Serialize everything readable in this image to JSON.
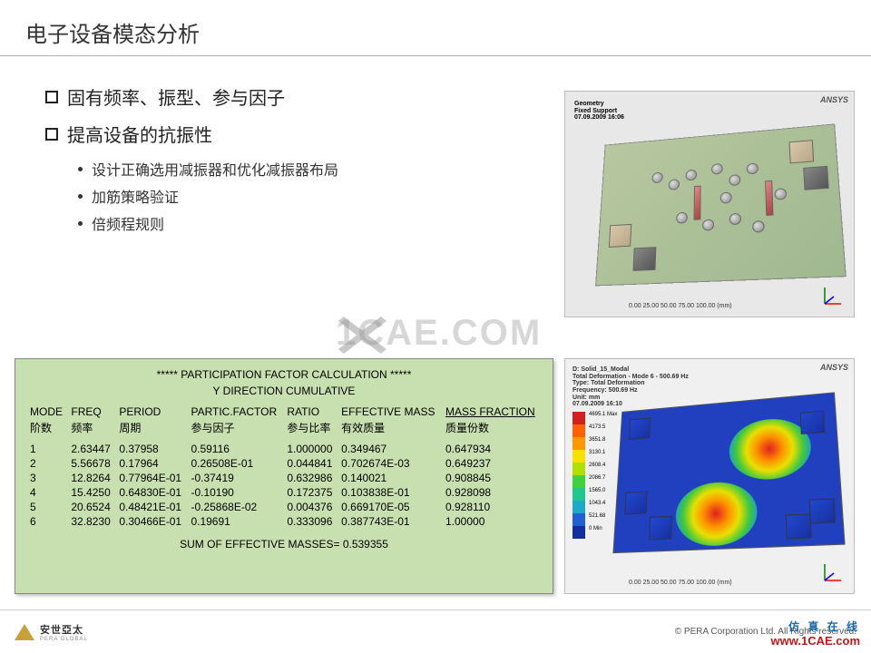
{
  "title": "电子设备模态分析",
  "bullets": {
    "b1": "固有频率、振型、参与因子",
    "b2": "提高设备的抗振性",
    "s1": "设计正确选用减振器和优化减振器布局",
    "s2": "加筋策略验证",
    "s3": "倍频程规则"
  },
  "figure_top": {
    "panel": "Geometry\nFixed Support\n07.09.2009 16:06",
    "logo": "ANSYS",
    "scale": "0.00    25.00    50.00    75.00    100.00 (mm)"
  },
  "figure_bot": {
    "panel": "D: Solid_15_Modal\nTotal Deformation - Mode 6 - 500.69 Hz\nType: Total Deformation\nFrequency: 500.69 Hz\nUnit: mm\n07.09.2009 16:10",
    "logo": "ANSYS",
    "legend_vals": [
      "4695.1 Max",
      "4173.5",
      "3651.8",
      "3130.1",
      "2608.4",
      "2086.7",
      "1565.0",
      "1043.4",
      "521.68",
      "0 Min"
    ],
    "legend_colors": [
      "#d02020",
      "#ff6000",
      "#ff9800",
      "#f8e000",
      "#b0e000",
      "#40d040",
      "#20c890",
      "#20a8c8",
      "#2060d0",
      "#1030a0"
    ],
    "scale": "0.00    25.00    50.00    75.00    100.00 (mm)"
  },
  "table": {
    "title": "*****  PARTICIPATION  FACTOR  CALCULATION  *****",
    "subtitle": "Y  DIRECTION CUMULATIVE",
    "headers_en": [
      "MODE",
      "FREQ",
      "PERIOD",
      "PARTIC.FACTOR",
      "RATIO",
      "EFFECTIVE MASS",
      "MASS FRACTION"
    ],
    "headers_cn": [
      "阶数",
      "频率",
      "周期",
      "参与因子",
      "参与比率",
      "有效质量",
      "质量份数"
    ],
    "rows": [
      [
        "1",
        "2.63447",
        "0.37958",
        "0.59116",
        "1.000000",
        "0.349467",
        "0.647934"
      ],
      [
        "2",
        "5.56678",
        "0.17964",
        "0.26508E-01",
        "0.044841",
        "0.702674E-03",
        "0.649237"
      ],
      [
        "3",
        "12.8264",
        "0.77964E-01",
        "-0.37419",
        "0.632986",
        "0.140021",
        "0.908845"
      ],
      [
        "4",
        "15.4250",
        "0.64830E-01",
        "-0.10190",
        "0.172375",
        "0.103838E-01",
        "0.928098"
      ],
      [
        "5",
        "20.6524",
        "0.48421E-01",
        "-0.25868E-02",
        "0.004376",
        "0.669170E-05",
        "0.928110"
      ],
      [
        "6",
        "32.8230",
        "0.30466E-01",
        "0.19691",
        "0.333096",
        "0.387743E-01",
        "1.00000"
      ]
    ],
    "sum": "SUM OF EFFECTIVE MASSES=  0.539355"
  },
  "watermark": "1CAE.COM",
  "footer": {
    "pera": "安世亞太",
    "pera_sub": "PERA GLOBAL",
    "copy": "©  PERA Corporation Ltd. All Rights reserved.",
    "cae_cn": "仿 真 在 线",
    "cae_url": "www.1CAE.com"
  }
}
